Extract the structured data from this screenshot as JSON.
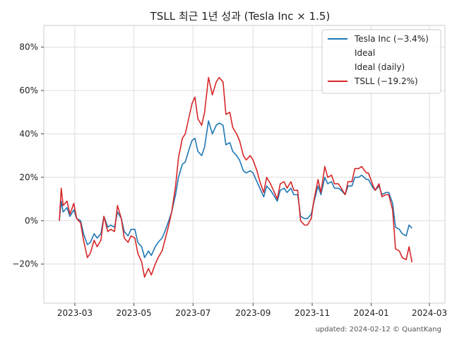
{
  "chart_data": {
    "type": "line",
    "title": "TSLL 최근 1년 성과 (Tesla Inc × 1.5)",
    "xlabel": "",
    "ylabel": "",
    "x_ticks": [
      "2023-03",
      "2023-05",
      "2023-07",
      "2023-09",
      "2023-11",
      "2024-01",
      "2024-03"
    ],
    "y_ticks": [
      "80%",
      "60%",
      "40%",
      "20%",
      "0%",
      "-20%"
    ],
    "ylim": [
      -38,
      90
    ],
    "grid": true,
    "legend_position": "top-right",
    "legend": [
      {
        "label": "Tesla Inc (-3.4%)",
        "color": "#1f77b4",
        "line": true
      },
      {
        "label": "Ideal",
        "color": "#ffffff",
        "line": false
      },
      {
        "label": "Ideal (daily)",
        "color": "#ffffff",
        "line": false
      },
      {
        "label": "TSLL (-19.2%)",
        "color": "#d62728",
        "line": true
      }
    ],
    "series": [
      {
        "name": "Tesla Inc (-3.4%)",
        "color": "#1f77b4",
        "points": [
          [
            "2023-02-13",
            0
          ],
          [
            "2023-02-15",
            9
          ],
          [
            "2023-02-17",
            4
          ],
          [
            "2023-02-21",
            6
          ],
          [
            "2023-02-24",
            2
          ],
          [
            "2023-02-28",
            5
          ],
          [
            "2023-03-03",
            1
          ],
          [
            "2023-03-07",
            0
          ],
          [
            "2023-03-10",
            -6
          ],
          [
            "2023-03-14",
            -11
          ],
          [
            "2023-03-17",
            -10
          ],
          [
            "2023-03-21",
            -6
          ],
          [
            "2023-03-24",
            -8
          ],
          [
            "2023-03-28",
            -6
          ],
          [
            "2023-03-31",
            2
          ],
          [
            "2023-04-04",
            -3
          ],
          [
            "2023-04-07",
            -2
          ],
          [
            "2023-04-11",
            -3
          ],
          [
            "2023-04-14",
            4
          ],
          [
            "2023-04-18",
            1
          ],
          [
            "2023-04-21",
            -5
          ],
          [
            "2023-04-25",
            -7
          ],
          [
            "2023-04-28",
            -4
          ],
          [
            "2023-05-02",
            -4
          ],
          [
            "2023-05-05",
            -10
          ],
          [
            "2023-05-09",
            -12
          ],
          [
            "2023-05-12",
            -17
          ],
          [
            "2023-05-16",
            -14
          ],
          [
            "2023-05-19",
            -16
          ],
          [
            "2023-05-23",
            -12
          ],
          [
            "2023-05-26",
            -10
          ],
          [
            "2023-05-30",
            -8
          ],
          [
            "2023-06-02",
            -5
          ],
          [
            "2023-06-06",
            0
          ],
          [
            "2023-06-09",
            4
          ],
          [
            "2023-06-13",
            12
          ],
          [
            "2023-06-16",
            20
          ],
          [
            "2023-06-20",
            26
          ],
          [
            "2023-06-23",
            27
          ],
          [
            "2023-06-27",
            33
          ],
          [
            "2023-06-30",
            37
          ],
          [
            "2023-07-03",
            38
          ],
          [
            "2023-07-06",
            32
          ],
          [
            "2023-07-10",
            30
          ],
          [
            "2023-07-13",
            34
          ],
          [
            "2023-07-17",
            46
          ],
          [
            "2023-07-19",
            43
          ],
          [
            "2023-07-21",
            40
          ],
          [
            "2023-07-25",
            44
          ],
          [
            "2023-07-28",
            45
          ],
          [
            "2023-08-01",
            44
          ],
          [
            "2023-08-04",
            35
          ],
          [
            "2023-08-08",
            36
          ],
          [
            "2023-08-11",
            32
          ],
          [
            "2023-08-15",
            30
          ],
          [
            "2023-08-18",
            28
          ],
          [
            "2023-08-22",
            23
          ],
          [
            "2023-08-25",
            22
          ],
          [
            "2023-08-29",
            23
          ],
          [
            "2023-09-01",
            22
          ],
          [
            "2023-09-05",
            18
          ],
          [
            "2023-09-08",
            15
          ],
          [
            "2023-09-12",
            11
          ],
          [
            "2023-09-15",
            16
          ],
          [
            "2023-09-19",
            14
          ],
          [
            "2023-09-22",
            12
          ],
          [
            "2023-09-26",
            9
          ],
          [
            "2023-09-29",
            14
          ],
          [
            "2023-10-03",
            15
          ],
          [
            "2023-10-06",
            13
          ],
          [
            "2023-10-10",
            15
          ],
          [
            "2023-10-13",
            12
          ],
          [
            "2023-10-17",
            12
          ],
          [
            "2023-10-20",
            2
          ],
          [
            "2023-10-24",
            1
          ],
          [
            "2023-10-27",
            1
          ],
          [
            "2023-10-31",
            3
          ],
          [
            "2023-11-03",
            9
          ],
          [
            "2023-11-07",
            16
          ],
          [
            "2023-11-10",
            12
          ],
          [
            "2023-11-14",
            20
          ],
          [
            "2023-11-17",
            17
          ],
          [
            "2023-11-21",
            18
          ],
          [
            "2023-11-24",
            15
          ],
          [
            "2023-11-28",
            15
          ],
          [
            "2023-12-01",
            14
          ],
          [
            "2023-12-05",
            12
          ],
          [
            "2023-12-08",
            16
          ],
          [
            "2023-12-12",
            16
          ],
          [
            "2023-12-15",
            20
          ],
          [
            "2023-12-19",
            20
          ],
          [
            "2023-12-22",
            21
          ],
          [
            "2023-12-27",
            19
          ],
          [
            "2023-12-29",
            19
          ],
          [
            "2024-01-03",
            15
          ],
          [
            "2024-01-05",
            14
          ],
          [
            "2024-01-09",
            16
          ],
          [
            "2024-01-12",
            12
          ],
          [
            "2024-01-16",
            13
          ],
          [
            "2024-01-19",
            13
          ],
          [
            "2024-01-23",
            8
          ],
          [
            "2024-01-26",
            -3
          ],
          [
            "2024-01-30",
            -4
          ],
          [
            "2024-02-02",
            -6
          ],
          [
            "2024-02-06",
            -7
          ],
          [
            "2024-02-09",
            -2
          ],
          [
            "2024-02-12",
            -3.4
          ]
        ]
      },
      {
        "name": "TSLL (-19.2%)",
        "color": "#d62728",
        "points": [
          [
            "2023-02-13",
            0
          ],
          [
            "2023-02-15",
            15
          ],
          [
            "2023-02-17",
            7
          ],
          [
            "2023-02-21",
            9
          ],
          [
            "2023-02-24",
            3
          ],
          [
            "2023-02-28",
            8
          ],
          [
            "2023-03-03",
            1
          ],
          [
            "2023-03-07",
            -1
          ],
          [
            "2023-03-10",
            -9
          ],
          [
            "2023-03-14",
            -17
          ],
          [
            "2023-03-17",
            -15
          ],
          [
            "2023-03-21",
            -9
          ],
          [
            "2023-03-24",
            -12
          ],
          [
            "2023-03-28",
            -9
          ],
          [
            "2023-03-31",
            2
          ],
          [
            "2023-04-04",
            -5
          ],
          [
            "2023-04-07",
            -4
          ],
          [
            "2023-04-11",
            -5
          ],
          [
            "2023-04-14",
            7
          ],
          [
            "2023-04-18",
            1
          ],
          [
            "2023-04-21",
            -8
          ],
          [
            "2023-04-25",
            -10
          ],
          [
            "2023-04-28",
            -7
          ],
          [
            "2023-05-02",
            -8
          ],
          [
            "2023-05-05",
            -15
          ],
          [
            "2023-05-09",
            -19
          ],
          [
            "2023-05-12",
            -26
          ],
          [
            "2023-05-16",
            -22
          ],
          [
            "2023-05-19",
            -25
          ],
          [
            "2023-05-23",
            -20
          ],
          [
            "2023-05-26",
            -17
          ],
          [
            "2023-05-30",
            -14
          ],
          [
            "2023-06-02",
            -9
          ],
          [
            "2023-06-06",
            -2
          ],
          [
            "2023-06-09",
            4
          ],
          [
            "2023-06-13",
            16
          ],
          [
            "2023-06-16",
            29
          ],
          [
            "2023-06-20",
            38
          ],
          [
            "2023-06-23",
            40
          ],
          [
            "2023-06-27",
            48
          ],
          [
            "2023-06-30",
            54
          ],
          [
            "2023-07-03",
            57
          ],
          [
            "2023-07-06",
            47
          ],
          [
            "2023-07-10",
            44
          ],
          [
            "2023-07-13",
            50
          ],
          [
            "2023-07-17",
            66
          ],
          [
            "2023-07-19",
            62
          ],
          [
            "2023-07-21",
            58
          ],
          [
            "2023-07-25",
            64
          ],
          [
            "2023-07-28",
            66
          ],
          [
            "2023-08-01",
            64
          ],
          [
            "2023-08-04",
            49
          ],
          [
            "2023-08-08",
            50
          ],
          [
            "2023-08-11",
            43
          ],
          [
            "2023-08-15",
            40
          ],
          [
            "2023-08-18",
            37
          ],
          [
            "2023-08-22",
            30
          ],
          [
            "2023-08-25",
            28
          ],
          [
            "2023-08-29",
            30
          ],
          [
            "2023-09-01",
            28
          ],
          [
            "2023-09-05",
            23
          ],
          [
            "2023-09-08",
            18
          ],
          [
            "2023-09-12",
            13
          ],
          [
            "2023-09-15",
            20
          ],
          [
            "2023-09-19",
            17
          ],
          [
            "2023-09-22",
            14
          ],
          [
            "2023-09-26",
            10
          ],
          [
            "2023-09-29",
            17
          ],
          [
            "2023-10-03",
            18
          ],
          [
            "2023-10-06",
            15
          ],
          [
            "2023-10-10",
            18
          ],
          [
            "2023-10-13",
            14
          ],
          [
            "2023-10-17",
            14
          ],
          [
            "2023-10-20",
            0
          ],
          [
            "2023-10-24",
            -2
          ],
          [
            "2023-10-27",
            -2
          ],
          [
            "2023-10-31",
            1
          ],
          [
            "2023-11-03",
            10
          ],
          [
            "2023-11-07",
            19
          ],
          [
            "2023-11-10",
            13
          ],
          [
            "2023-11-14",
            25
          ],
          [
            "2023-11-17",
            20
          ],
          [
            "2023-11-21",
            21
          ],
          [
            "2023-11-24",
            17
          ],
          [
            "2023-11-28",
            17
          ],
          [
            "2023-12-01",
            15
          ],
          [
            "2023-12-05",
            12
          ],
          [
            "2023-12-08",
            18
          ],
          [
            "2023-12-12",
            18
          ],
          [
            "2023-12-15",
            24
          ],
          [
            "2023-12-19",
            24
          ],
          [
            "2023-12-22",
            25
          ],
          [
            "2023-12-27",
            22
          ],
          [
            "2023-12-29",
            22
          ],
          [
            "2024-01-03",
            16
          ],
          [
            "2024-01-05",
            14
          ],
          [
            "2024-01-09",
            17
          ],
          [
            "2024-01-12",
            11
          ],
          [
            "2024-01-16",
            12
          ],
          [
            "2024-01-19",
            12
          ],
          [
            "2024-01-23",
            5
          ],
          [
            "2024-01-26",
            -13
          ],
          [
            "2024-01-30",
            -14
          ],
          [
            "2024-02-02",
            -17
          ],
          [
            "2024-02-06",
            -18
          ],
          [
            "2024-02-09",
            -12
          ],
          [
            "2024-02-12",
            -19.2
          ]
        ]
      }
    ]
  },
  "footer": "updated: 2024-02-12 © QuantKang"
}
